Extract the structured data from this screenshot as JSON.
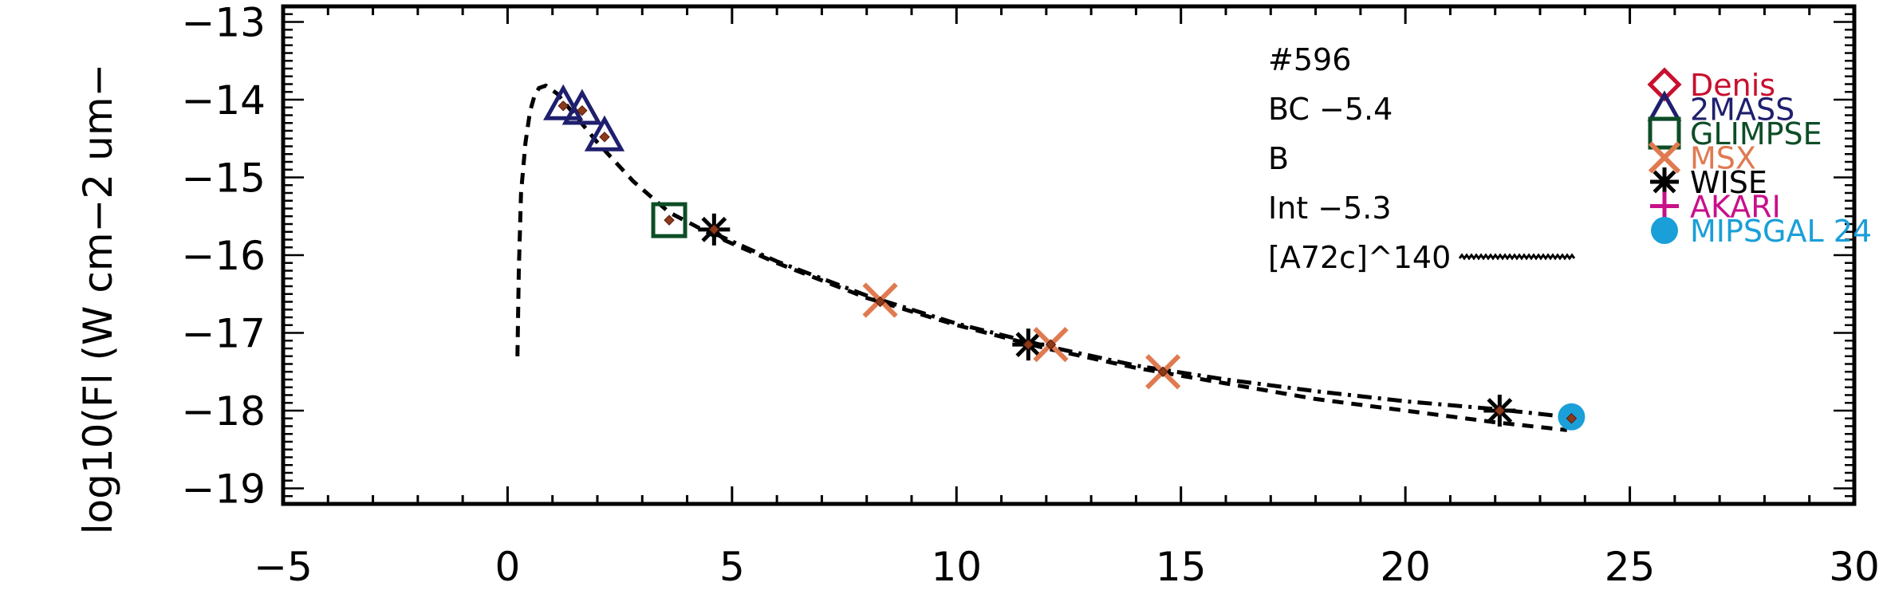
{
  "chart_data": {
    "type": "scatter",
    "title": "",
    "xlabel": "",
    "ylabel": "log10(Fl (W cm−2 um−",
    "xlim": [
      -5,
      30
    ],
    "ylim": [
      -19.2,
      -12.8
    ],
    "x_ticks": [
      -5,
      0,
      5,
      10,
      15,
      20,
      25,
      30
    ],
    "x_tick_labels": [
      "−5",
      "0",
      "5",
      "10",
      "15",
      "20",
      "25",
      "30"
    ],
    "y_ticks": [
      -19,
      -18,
      -17,
      -16,
      -15,
      -14,
      -13
    ],
    "y_tick_labels": [
      "−19",
      "−18",
      "−17",
      "−16",
      "−15",
      "−14",
      "−13"
    ],
    "annotations": [
      "#596",
      "BC −5.4",
      "B",
      "Int −5.3",
      "[A72c]^140"
    ],
    "legend_position": "top-right",
    "legend": [
      {
        "name": "Denis",
        "marker": "diamond",
        "color": "#c8102e"
      },
      {
        "name": "2MASS",
        "marker": "triangle",
        "color": "#1f1f6e"
      },
      {
        "name": "GLIMPSE",
        "marker": "square",
        "color": "#0d4d26"
      },
      {
        "name": "MSX",
        "marker": "x",
        "color": "#e07a50"
      },
      {
        "name": "WISE",
        "marker": "asterisk",
        "color": "#000000"
      },
      {
        "name": "AKARI",
        "marker": "plus",
        "color": "#c8108a"
      },
      {
        "name": "MIPSGAL 24",
        "marker": "circle",
        "color": "#1a9fd8"
      }
    ],
    "series": [
      {
        "name": "2MASS",
        "marker": "triangle",
        "color": "#1f1f6e",
        "x": [
          1.24,
          1.66,
          2.16
        ],
        "y": [
          -14.08,
          -14.14,
          -14.48
        ]
      },
      {
        "name": "GLIMPSE",
        "marker": "square",
        "color": "#0d4d26",
        "x": [
          3.6
        ],
        "y": [
          -15.55
        ]
      },
      {
        "name": "WISE",
        "marker": "asterisk",
        "color": "#000000",
        "x": [
          4.6,
          11.6,
          22.1
        ],
        "y": [
          -15.67,
          -17.15,
          -18.0
        ]
      },
      {
        "name": "MSX",
        "marker": "x",
        "color": "#e07a50",
        "x": [
          8.3,
          12.1,
          14.6
        ],
        "y": [
          -16.58,
          -17.15,
          -17.5
        ]
      },
      {
        "name": "MIPSGAL 24",
        "marker": "circle",
        "color": "#1a9fd8",
        "x": [
          23.7
        ],
        "y": [
          -18.08
        ]
      },
      {
        "name": "model points",
        "marker": "dot",
        "color": "#8b3a1a",
        "x": [
          1.24,
          1.66,
          2.16,
          3.6,
          4.6,
          8.3,
          11.6,
          12.1,
          14.6,
          22.1,
          23.7
        ],
        "y": [
          -14.08,
          -14.14,
          -14.48,
          -15.55,
          -15.67,
          -16.6,
          -17.15,
          -17.15,
          -17.5,
          -18.0,
          -18.1
        ]
      }
    ],
    "curves": [
      {
        "style": "dashed",
        "x": [
          0.22,
          0.25,
          0.3,
          0.4,
          0.5,
          0.6,
          0.7,
          0.85,
          1.1,
          1.5,
          2.0,
          2.8,
          3.6,
          4.6,
          6.0,
          8.0,
          10.0,
          12.0,
          14.0,
          16.0,
          18.0,
          20.0,
          22.0,
          23.6
        ],
        "y": [
          -17.3,
          -16.2,
          -15.2,
          -14.55,
          -14.15,
          -13.95,
          -13.85,
          -13.82,
          -13.92,
          -14.2,
          -14.55,
          -15.05,
          -15.45,
          -15.75,
          -16.1,
          -16.55,
          -16.9,
          -17.2,
          -17.45,
          -17.65,
          -17.85,
          -18.0,
          -18.15,
          -18.25
        ]
      },
      {
        "style": "dashdot",
        "x": [
          4.6,
          6.0,
          8.0,
          10.0,
          12.0,
          14.0,
          16.0,
          18.0,
          20.0,
          22.0,
          23.6
        ],
        "y": [
          -15.72,
          -16.08,
          -16.52,
          -16.88,
          -17.17,
          -17.42,
          -17.6,
          -17.75,
          -17.88,
          -17.98,
          -18.08
        ]
      }
    ]
  }
}
